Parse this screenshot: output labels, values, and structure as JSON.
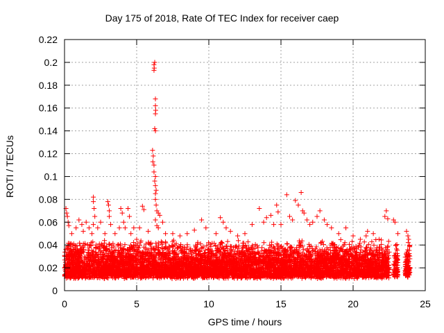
{
  "chart_data": {
    "type": "scatter",
    "title": "Day 175 of 2018, Rate Of TEC Index for receiver caep",
    "xlabel": "GPS time / hours",
    "ylabel": "ROTI / TECUs",
    "xlim": [
      0,
      25
    ],
    "ylim": [
      0,
      0.22
    ],
    "xticks": [
      0,
      5,
      10,
      15,
      20,
      25
    ],
    "yticks": [
      0,
      0.02,
      0.04,
      0.06,
      0.08,
      0.1,
      0.12,
      0.14,
      0.16,
      0.18,
      0.2,
      0.22
    ],
    "grid": true,
    "marker": "+",
    "color": "#ff0000",
    "series": [
      {
        "name": "ROTI",
        "bulk_range": [
          0.005,
          0.045
        ],
        "points": [
          [
            0.1,
            0.072
          ],
          [
            0.15,
            0.068
          ],
          [
            0.2,
            0.065
          ],
          [
            0.25,
            0.06
          ],
          [
            0.3,
            0.057
          ],
          [
            0.5,
            0.05
          ],
          [
            0.8,
            0.055
          ],
          [
            1.0,
            0.062
          ],
          [
            1.2,
            0.058
          ],
          [
            1.3,
            0.052
          ],
          [
            1.5,
            0.06
          ],
          [
            1.7,
            0.055
          ],
          [
            1.9,
            0.05
          ],
          [
            2.0,
            0.058
          ],
          [
            2.0,
            0.082
          ],
          [
            2.0,
            0.078
          ],
          [
            2.05,
            0.072
          ],
          [
            2.1,
            0.065
          ],
          [
            2.3,
            0.055
          ],
          [
            2.5,
            0.06
          ],
          [
            2.8,
            0.05
          ],
          [
            3.0,
            0.078
          ],
          [
            3.05,
            0.075
          ],
          [
            3.1,
            0.07
          ],
          [
            3.1,
            0.065
          ],
          [
            3.2,
            0.058
          ],
          [
            3.5,
            0.05
          ],
          [
            3.8,
            0.055
          ],
          [
            3.9,
            0.072
          ],
          [
            4.0,
            0.068
          ],
          [
            4.1,
            0.06
          ],
          [
            4.2,
            0.055
          ],
          [
            4.4,
            0.072
          ],
          [
            4.5,
            0.065
          ],
          [
            4.6,
            0.05
          ],
          [
            4.8,
            0.055
          ],
          [
            5.0,
            0.045
          ],
          [
            5.4,
            0.074
          ],
          [
            5.5,
            0.071
          ],
          [
            5.2,
            0.055
          ],
          [
            5.8,
            0.052
          ],
          [
            6.2,
            0.198
          ],
          [
            6.2,
            0.193
          ],
          [
            6.22,
            0.195
          ],
          [
            6.25,
            0.2
          ],
          [
            6.3,
            0.168
          ],
          [
            6.3,
            0.162
          ],
          [
            6.32,
            0.158
          ],
          [
            6.3,
            0.155
          ],
          [
            6.25,
            0.142
          ],
          [
            6.3,
            0.14
          ],
          [
            6.1,
            0.123
          ],
          [
            6.15,
            0.118
          ],
          [
            6.12,
            0.113
          ],
          [
            6.2,
            0.11
          ],
          [
            6.2,
            0.104
          ],
          [
            6.3,
            0.1
          ],
          [
            6.25,
            0.096
          ],
          [
            6.3,
            0.092
          ],
          [
            6.35,
            0.088
          ],
          [
            6.3,
            0.085
          ],
          [
            6.3,
            0.08
          ],
          [
            6.35,
            0.075
          ],
          [
            6.4,
            0.07
          ],
          [
            6.5,
            0.068
          ],
          [
            6.6,
            0.066
          ],
          [
            6.3,
            0.062
          ],
          [
            6.4,
            0.057
          ],
          [
            6.5,
            0.055
          ],
          [
            6.8,
            0.06
          ],
          [
            7.0,
            0.05
          ],
          [
            7.5,
            0.05
          ],
          [
            8.0,
            0.048
          ],
          [
            8.5,
            0.05
          ],
          [
            9.0,
            0.053
          ],
          [
            9.5,
            0.062
          ],
          [
            9.8,
            0.055
          ],
          [
            10.5,
            0.05
          ],
          [
            10.8,
            0.064
          ],
          [
            11.0,
            0.06
          ],
          [
            11.2,
            0.055
          ],
          [
            11.5,
            0.052
          ],
          [
            12.0,
            0.048
          ],
          [
            12.5,
            0.05
          ],
          [
            13.0,
            0.058
          ],
          [
            13.5,
            0.072
          ],
          [
            13.8,
            0.06
          ],
          [
            14.0,
            0.064
          ],
          [
            14.3,
            0.066
          ],
          [
            14.5,
            0.058
          ],
          [
            14.7,
            0.075
          ],
          [
            14.8,
            0.069
          ],
          [
            15.0,
            0.058
          ],
          [
            15.4,
            0.084
          ],
          [
            15.6,
            0.065
          ],
          [
            15.8,
            0.062
          ],
          [
            16.0,
            0.079
          ],
          [
            16.2,
            0.075
          ],
          [
            16.4,
            0.086
          ],
          [
            16.5,
            0.07
          ],
          [
            16.6,
            0.068
          ],
          [
            16.8,
            0.062
          ],
          [
            17.0,
            0.058
          ],
          [
            17.2,
            0.06
          ],
          [
            17.5,
            0.065
          ],
          [
            17.7,
            0.07
          ],
          [
            18.0,
            0.062
          ],
          [
            18.2,
            0.058
          ],
          [
            18.5,
            0.055
          ],
          [
            19.0,
            0.05
          ],
          [
            19.5,
            0.055
          ],
          [
            20.0,
            0.048
          ],
          [
            20.5,
            0.045
          ],
          [
            20.9,
            0.048
          ],
          [
            21.0,
            0.052
          ],
          [
            21.4,
            0.05
          ],
          [
            21.8,
            0.045
          ],
          [
            22.2,
            0.065
          ],
          [
            22.3,
            0.07
          ],
          [
            22.4,
            0.063
          ],
          [
            22.8,
            0.062
          ],
          [
            22.9,
            0.06
          ],
          [
            23.1,
            0.05
          ],
          [
            23.7,
            0.052
          ],
          [
            23.8,
            0.048
          ],
          [
            23.85,
            0.045
          ]
        ]
      }
    ]
  }
}
